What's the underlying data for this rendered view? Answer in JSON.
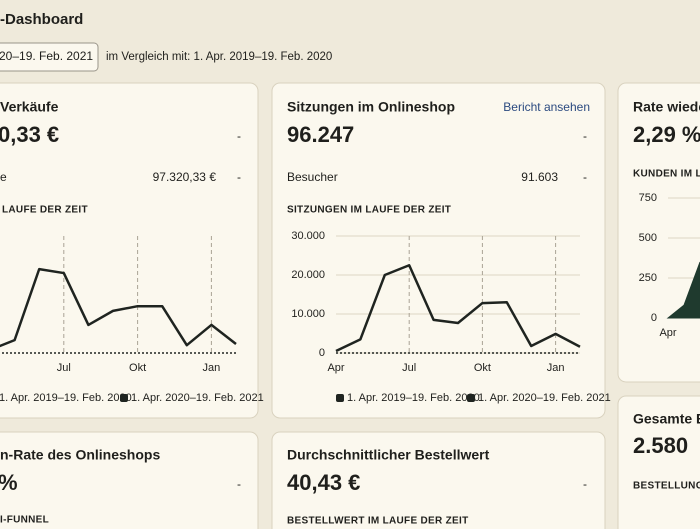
{
  "header": {
    "title": "-Dashboard",
    "date_range": "20–19. Feb. 2021",
    "comparison": "im Vergleich mit: 1. Apr. 2019–19. Feb. 2020"
  },
  "cards": [
    {
      "title": "Verkäufe",
      "value": "0,33 €",
      "change": "-",
      "sub_label": "e",
      "sub_value": "97.320,33 €",
      "sub_change": "-",
      "chart_title": "LAUFE DER ZEIT",
      "chart": {
        "type": "line",
        "categories": [
          null,
          null,
          null,
          "Jul",
          null,
          null,
          "Okt",
          null,
          null,
          "Jan",
          null
        ],
        "ylim": [
          0,
          30000
        ],
        "series": [
          {
            "name": "1. Apr. 2019–19. Feb. 2020",
            "color": "#1f2420",
            "style": "dotted",
            "values": [
              0,
              0,
              0,
              0,
              0,
              0,
              0,
              0,
              0,
              0,
              0
            ]
          },
          {
            "name": "1. Apr. 2020–19. Feb. 2021",
            "color": "#1f2420",
            "style": "solid",
            "values": [
              800,
              3300,
              21500,
              20500,
              7200,
              10800,
              12000,
              12000,
              2000,
              7200,
              2300
            ]
          }
        ]
      }
    },
    {
      "title": "Sitzungen im Onlineshop",
      "link": "Bericht ansehen",
      "value": "96.247",
      "change": "-",
      "sub_label": "Besucher",
      "sub_value": "91.603",
      "sub_change": "-",
      "chart_title": "SITZUNGEN IM LAUFE DER ZEIT",
      "chart": {
        "type": "line",
        "categories": [
          "Apr",
          null,
          null,
          "Jul",
          null,
          null,
          "Okt",
          null,
          null,
          "Jan",
          null
        ],
        "ylim": [
          0,
          30000
        ],
        "yticks": [
          0,
          {
            "value": 10000,
            "label": "10.000"
          },
          {
            "value": 20000,
            "label": "20.000"
          },
          {
            "value": 30000,
            "label": "30.000"
          }
        ],
        "grid": true,
        "series": [
          {
            "name": "1. Apr. 2019–19. Feb. 2020",
            "color": "#1f2420",
            "style": "dotted",
            "values": [
              0,
              0,
              0,
              0,
              0,
              0,
              0,
              0,
              0,
              0,
              0
            ]
          },
          {
            "name": "1. Apr. 2020–19. Feb. 2021",
            "color": "#1f2420",
            "style": "solid",
            "values": [
              500,
              3500,
              20000,
              22500,
              8500,
              7700,
              12800,
              13000,
              1800,
              4900,
              1600
            ]
          }
        ]
      }
    },
    {
      "title": "Rate wieder",
      "value": "2,29 %",
      "chart_title": "KUNDEN IM LA",
      "chart": {
        "type": "area",
        "categories": [
          "Apr",
          null,
          null
        ],
        "ylim": [
          0,
          750
        ],
        "yticks": [
          0,
          250,
          500,
          750
        ],
        "grid": true,
        "series": [
          {
            "color": "#1f3a2e",
            "style": "solid",
            "values": [
              0,
              80,
              350
            ]
          }
        ]
      }
    },
    {
      "title": "n-Rate des Onlineshops",
      "value": "%",
      "change": "-",
      "chart_title": "I-FUNNEL"
    },
    {
      "title": "Durchschnittlicher Bestellwert",
      "value": "40,43 €",
      "change": "-",
      "chart_title": "BESTELLWERT IM LAUFE DER ZEIT"
    },
    {
      "title": "Gesamte Be",
      "value": "2.580",
      "chart_title": "BESTELLUNGEN"
    }
  ]
}
